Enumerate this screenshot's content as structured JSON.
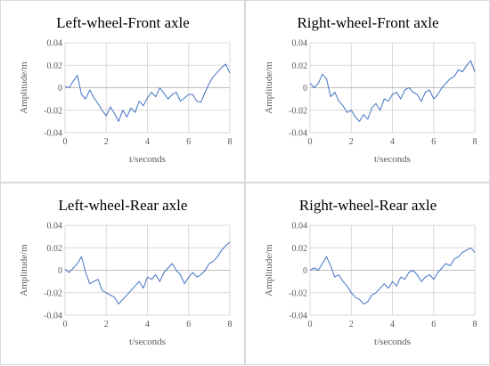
{
  "colors": {
    "series": "#4472c4",
    "grid": "#d9d9d9",
    "text": "#595959"
  },
  "chart_data": [
    {
      "type": "line",
      "title": "Left-wheel-Front axle",
      "xlabel": "t/seconds",
      "ylabel": "Amplitude/m",
      "xlim": [
        0,
        8
      ],
      "ylim": [
        -0.04,
        0.04
      ],
      "xticks": [
        "0",
        "2",
        "4",
        "6",
        "8"
      ],
      "yticks": [
        "0.04",
        "0.02",
        "0",
        "-0.02",
        "-0.04"
      ],
      "grid": true,
      "series": [
        {
          "x": [
            0,
            0.2,
            0.4,
            0.6,
            0.8,
            1.0,
            1.2,
            1.4,
            1.6,
            1.8,
            2.0,
            2.2,
            2.4,
            2.6,
            2.8,
            3.0,
            3.2,
            3.4,
            3.6,
            3.8,
            4.0,
            4.2,
            4.4,
            4.6,
            4.8,
            5.0,
            5.2,
            5.4,
            5.6,
            5.8,
            6.0,
            6.2,
            6.4,
            6.6,
            6.8,
            7.0,
            7.2,
            7.4,
            7.6,
            7.8,
            8.0
          ],
          "y": [
            0.001,
            0.0,
            0.006,
            0.011,
            -0.006,
            -0.01,
            -0.002,
            -0.009,
            -0.014,
            -0.02,
            -0.025,
            -0.017,
            -0.023,
            -0.03,
            -0.02,
            -0.026,
            -0.018,
            -0.022,
            -0.012,
            -0.016,
            -0.009,
            -0.004,
            -0.008,
            0.0,
            -0.005,
            -0.01,
            -0.006,
            -0.004,
            -0.012,
            -0.009,
            -0.006,
            -0.006,
            -0.012,
            -0.013,
            -0.004,
            0.004,
            0.01,
            0.014,
            0.018,
            0.021,
            0.013
          ]
        }
      ]
    },
    {
      "type": "line",
      "title": "Right-wheel-Front axle",
      "xlabel": "t/seconds",
      "ylabel": "Amplitude/m",
      "xlim": [
        0,
        8
      ],
      "ylim": [
        -0.04,
        0.04
      ],
      "xticks": [
        "0",
        "2",
        "4",
        "6",
        "8"
      ],
      "yticks": [
        "0.04",
        "0.02",
        "0",
        "-0.02",
        "-0.04"
      ],
      "grid": true,
      "series": [
        {
          "x": [
            0,
            0.2,
            0.4,
            0.6,
            0.8,
            1.0,
            1.2,
            1.4,
            1.6,
            1.8,
            2.0,
            2.2,
            2.4,
            2.6,
            2.8,
            3.0,
            3.2,
            3.4,
            3.6,
            3.8,
            4.0,
            4.2,
            4.4,
            4.6,
            4.8,
            5.0,
            5.2,
            5.4,
            5.6,
            5.8,
            6.0,
            6.2,
            6.4,
            6.6,
            6.8,
            7.0,
            7.2,
            7.4,
            7.6,
            7.8,
            8.0
          ],
          "y": [
            0.004,
            0.0,
            0.004,
            0.012,
            0.008,
            -0.008,
            -0.004,
            -0.012,
            -0.016,
            -0.022,
            -0.02,
            -0.026,
            -0.03,
            -0.024,
            -0.028,
            -0.018,
            -0.014,
            -0.02,
            -0.01,
            -0.012,
            -0.006,
            -0.004,
            -0.01,
            -0.002,
            0.0,
            -0.004,
            -0.006,
            -0.012,
            -0.004,
            -0.002,
            -0.01,
            -0.006,
            0.0,
            0.004,
            0.008,
            0.01,
            0.016,
            0.014,
            0.02,
            0.024,
            0.014
          ]
        }
      ]
    },
    {
      "type": "line",
      "title": "Left-wheel-Rear axle",
      "xlabel": "t/seconds",
      "ylabel": "Amplitude/m",
      "xlim": [
        0,
        8
      ],
      "ylim": [
        -0.04,
        0.04
      ],
      "xticks": [
        "0",
        "2",
        "4",
        "6",
        "8"
      ],
      "yticks": [
        "0.04",
        "0.02",
        "0",
        "-0.02",
        "-0.04"
      ],
      "grid": true,
      "series": [
        {
          "x": [
            0,
            0.2,
            0.4,
            0.6,
            0.8,
            1.0,
            1.2,
            1.4,
            1.6,
            1.8,
            2.0,
            2.2,
            2.4,
            2.6,
            2.8,
            3.0,
            3.2,
            3.4,
            3.6,
            3.8,
            4.0,
            4.2,
            4.4,
            4.6,
            4.8,
            5.0,
            5.2,
            5.4,
            5.6,
            5.8,
            6.0,
            6.2,
            6.4,
            6.6,
            6.8,
            7.0,
            7.2,
            7.4,
            7.6,
            7.8,
            8.0
          ],
          "y": [
            0.001,
            -0.002,
            0.002,
            0.006,
            0.012,
            -0.002,
            -0.012,
            -0.01,
            -0.008,
            -0.018,
            -0.02,
            -0.022,
            -0.024,
            -0.03,
            -0.026,
            -0.022,
            -0.018,
            -0.014,
            -0.01,
            -0.016,
            -0.006,
            -0.008,
            -0.004,
            -0.01,
            -0.002,
            0.002,
            0.006,
            0.0,
            -0.004,
            -0.012,
            -0.006,
            -0.002,
            -0.006,
            -0.004,
            0.0,
            0.006,
            0.008,
            0.012,
            0.018,
            0.022,
            0.025
          ]
        }
      ]
    },
    {
      "type": "line",
      "title": "Right-wheel-Rear axle",
      "xlabel": "t/seconds",
      "ylabel": "Amplitude/m",
      "xlim": [
        0,
        8
      ],
      "ylim": [
        -0.04,
        0.04
      ],
      "xticks": [
        "0",
        "2",
        "4",
        "6",
        "8"
      ],
      "yticks": [
        "0.04",
        "0.02",
        "0",
        "-0.02",
        "-0.04"
      ],
      "grid": true,
      "series": [
        {
          "x": [
            0,
            0.2,
            0.4,
            0.6,
            0.8,
            1.0,
            1.2,
            1.4,
            1.6,
            1.8,
            2.0,
            2.2,
            2.4,
            2.6,
            2.8,
            3.0,
            3.2,
            3.4,
            3.6,
            3.8,
            4.0,
            4.2,
            4.4,
            4.6,
            4.8,
            5.0,
            5.2,
            5.4,
            5.6,
            5.8,
            6.0,
            6.2,
            6.4,
            6.6,
            6.8,
            7.0,
            7.2,
            7.4,
            7.6,
            7.8,
            8.0
          ],
          "y": [
            0.0,
            0.002,
            0.0,
            0.006,
            0.012,
            0.004,
            -0.006,
            -0.004,
            -0.01,
            -0.014,
            -0.02,
            -0.024,
            -0.026,
            -0.03,
            -0.028,
            -0.022,
            -0.02,
            -0.016,
            -0.012,
            -0.016,
            -0.01,
            -0.014,
            -0.006,
            -0.008,
            -0.002,
            0.0,
            -0.004,
            -0.01,
            -0.006,
            -0.004,
            -0.008,
            -0.002,
            0.002,
            0.006,
            0.004,
            0.01,
            0.012,
            0.016,
            0.018,
            0.02,
            0.016
          ]
        }
      ]
    }
  ]
}
